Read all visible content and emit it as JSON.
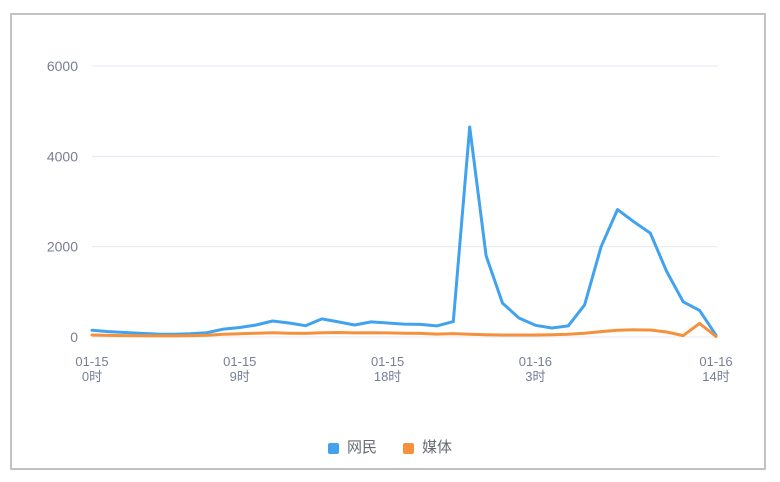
{
  "chart_data": {
    "type": "line",
    "title": "",
    "xlabel": "",
    "ylabel": "",
    "x": [
      "01-15 0时",
      "01-15 1时",
      "01-15 2时",
      "01-15 3时",
      "01-15 4时",
      "01-15 5时",
      "01-15 6时",
      "01-15 7时",
      "01-15 8时",
      "01-15 9时",
      "01-15 10时",
      "01-15 11时",
      "01-15 12时",
      "01-15 13时",
      "01-15 14时",
      "01-15 15时",
      "01-15 16时",
      "01-15 17时",
      "01-15 18时",
      "01-15 19时",
      "01-15 20时",
      "01-15 21时",
      "01-15 22时",
      "01-15 23时",
      "01-16 0时",
      "01-16 1时",
      "01-16 2时",
      "01-16 3时",
      "01-16 4时",
      "01-16 5时",
      "01-16 6时",
      "01-16 7时",
      "01-16 8时",
      "01-16 9时",
      "01-16 10时",
      "01-16 11时",
      "01-16 12时",
      "01-16 13时",
      "01-16 14时"
    ],
    "x_tick_indices": [
      0,
      9,
      18,
      27,
      38
    ],
    "x_ticks_shown": [
      "01-15 0时",
      "01-15 9时",
      "01-15 18时",
      "01-16 3时",
      "01-16 14时"
    ],
    "series": [
      {
        "name": "网民",
        "color": "#41a2ee",
        "values": [
          150,
          120,
          100,
          80,
          65,
          60,
          70,
          95,
          175,
          210,
          265,
          355,
          310,
          250,
          400,
          335,
          265,
          335,
          310,
          285,
          280,
          245,
          340,
          4650,
          1800,
          750,
          420,
          260,
          200,
          245,
          710,
          2000,
          2820,
          2550,
          2300,
          1450,
          780,
          590,
          40
        ]
      },
      {
        "name": "媒体",
        "color": "#f5913d",
        "values": [
          45,
          35,
          30,
          28,
          25,
          25,
          30,
          40,
          60,
          70,
          85,
          95,
          85,
          80,
          95,
          100,
          90,
          95,
          90,
          85,
          80,
          65,
          75,
          60,
          50,
          45,
          45,
          45,
          50,
          60,
          85,
          120,
          150,
          160,
          155,
          110,
          30,
          300,
          10
        ]
      }
    ],
    "ylim": [
      0,
      6000
    ],
    "yticks": [
      0,
      2000,
      4000,
      6000
    ],
    "grid": true,
    "legend_position": "bottom"
  },
  "colors": {
    "grid_line": "#e3e8f2",
    "axis_text": "#777e96",
    "frame_border": "#c2c2c2",
    "background": "#ffffff"
  }
}
